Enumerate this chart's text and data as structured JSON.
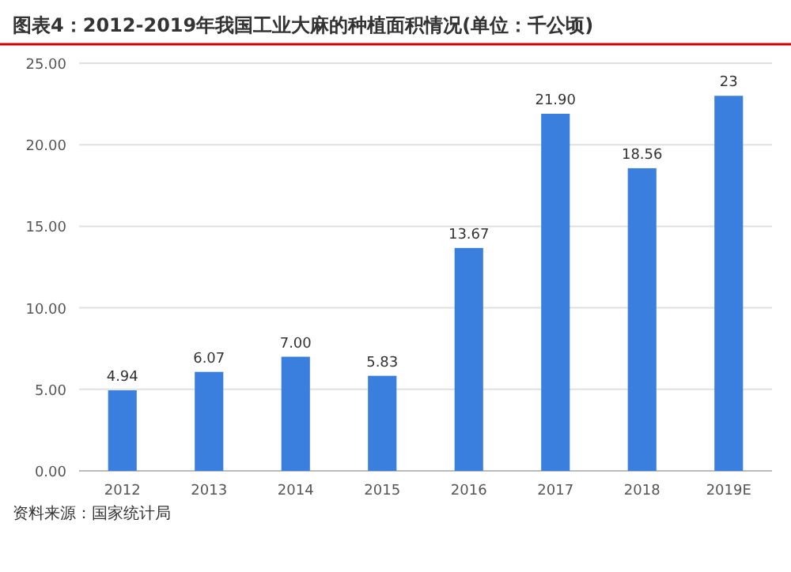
{
  "chart_data": {
    "type": "bar",
    "title": "图表4：2012-2019年我国工业大麻的种植面积情况(单位：千公顷)",
    "categories": [
      "2012",
      "2013",
      "2014",
      "2015",
      "2016",
      "2017",
      "2018",
      "2019E"
    ],
    "values": [
      4.94,
      6.07,
      7.0,
      5.83,
      13.67,
      21.9,
      18.56,
      23
    ],
    "value_labels": [
      "4.94",
      "6.07",
      "7.00",
      "5.83",
      "13.67",
      "21.90",
      "18.56",
      "23"
    ],
    "color": "#3a7fde",
    "ylim": [
      0,
      25
    ],
    "yticks": [
      {
        "value": 0,
        "label": "0.00"
      },
      {
        "value": 5,
        "label": "5.00"
      },
      {
        "value": 10,
        "label": "10.00"
      },
      {
        "value": 15,
        "label": "15.00"
      },
      {
        "value": 20,
        "label": "20.00"
      },
      {
        "value": 25,
        "label": "25.00"
      }
    ],
    "grid": "y",
    "annotations": [
      "资料来源：国家统计局"
    ]
  }
}
